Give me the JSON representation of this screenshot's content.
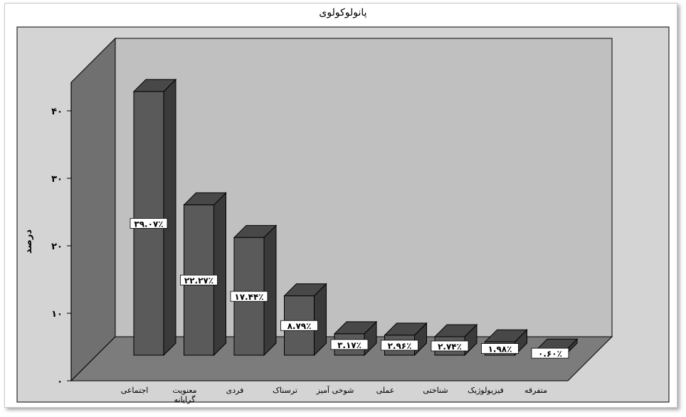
{
  "chart_data": {
    "type": "bar",
    "title": "پانولوکولوی",
    "ylabel": "درصد",
    "xlabel": "",
    "ylim": [
      0,
      40
    ],
    "yticks": [
      0,
      10,
      20,
      30,
      40
    ],
    "ytick_labels": [
      "۰",
      "۱۰",
      "۲۰",
      "۳۰",
      "۴۰"
    ],
    "categories": [
      "اجتماعی",
      "معنویت گرایانه",
      "فردی",
      "ترسناک",
      "شوخی آمیز",
      "عملی",
      "شناختی",
      "فیزیولوژیک",
      "متفرقه"
    ],
    "values": [
      39.07,
      22.27,
      17.44,
      8.79,
      3.17,
      2.96,
      2.74,
      1.98,
      0.6
    ],
    "data_labels": [
      "۳۹.۰۷٪",
      "۲۲.۲۷٪",
      "۱۷.۴۴٪",
      "۸.۷۹٪",
      "۳.۱۷٪",
      "۲.۹۶٪",
      "۲.۷۴٪",
      "۱.۹۸٪",
      "۰.۶۰٪"
    ],
    "colors": {
      "bar_front": "#5a5a5a",
      "bar_side": "#3a3a3a",
      "bar_top": "#484848",
      "back_wall": "#c0c0c0",
      "side_wall": "#707070",
      "floor": "#7c7c7c",
      "plot_background": "#d4d4d4"
    },
    "grid": false,
    "legend": "none",
    "style": "3d"
  }
}
